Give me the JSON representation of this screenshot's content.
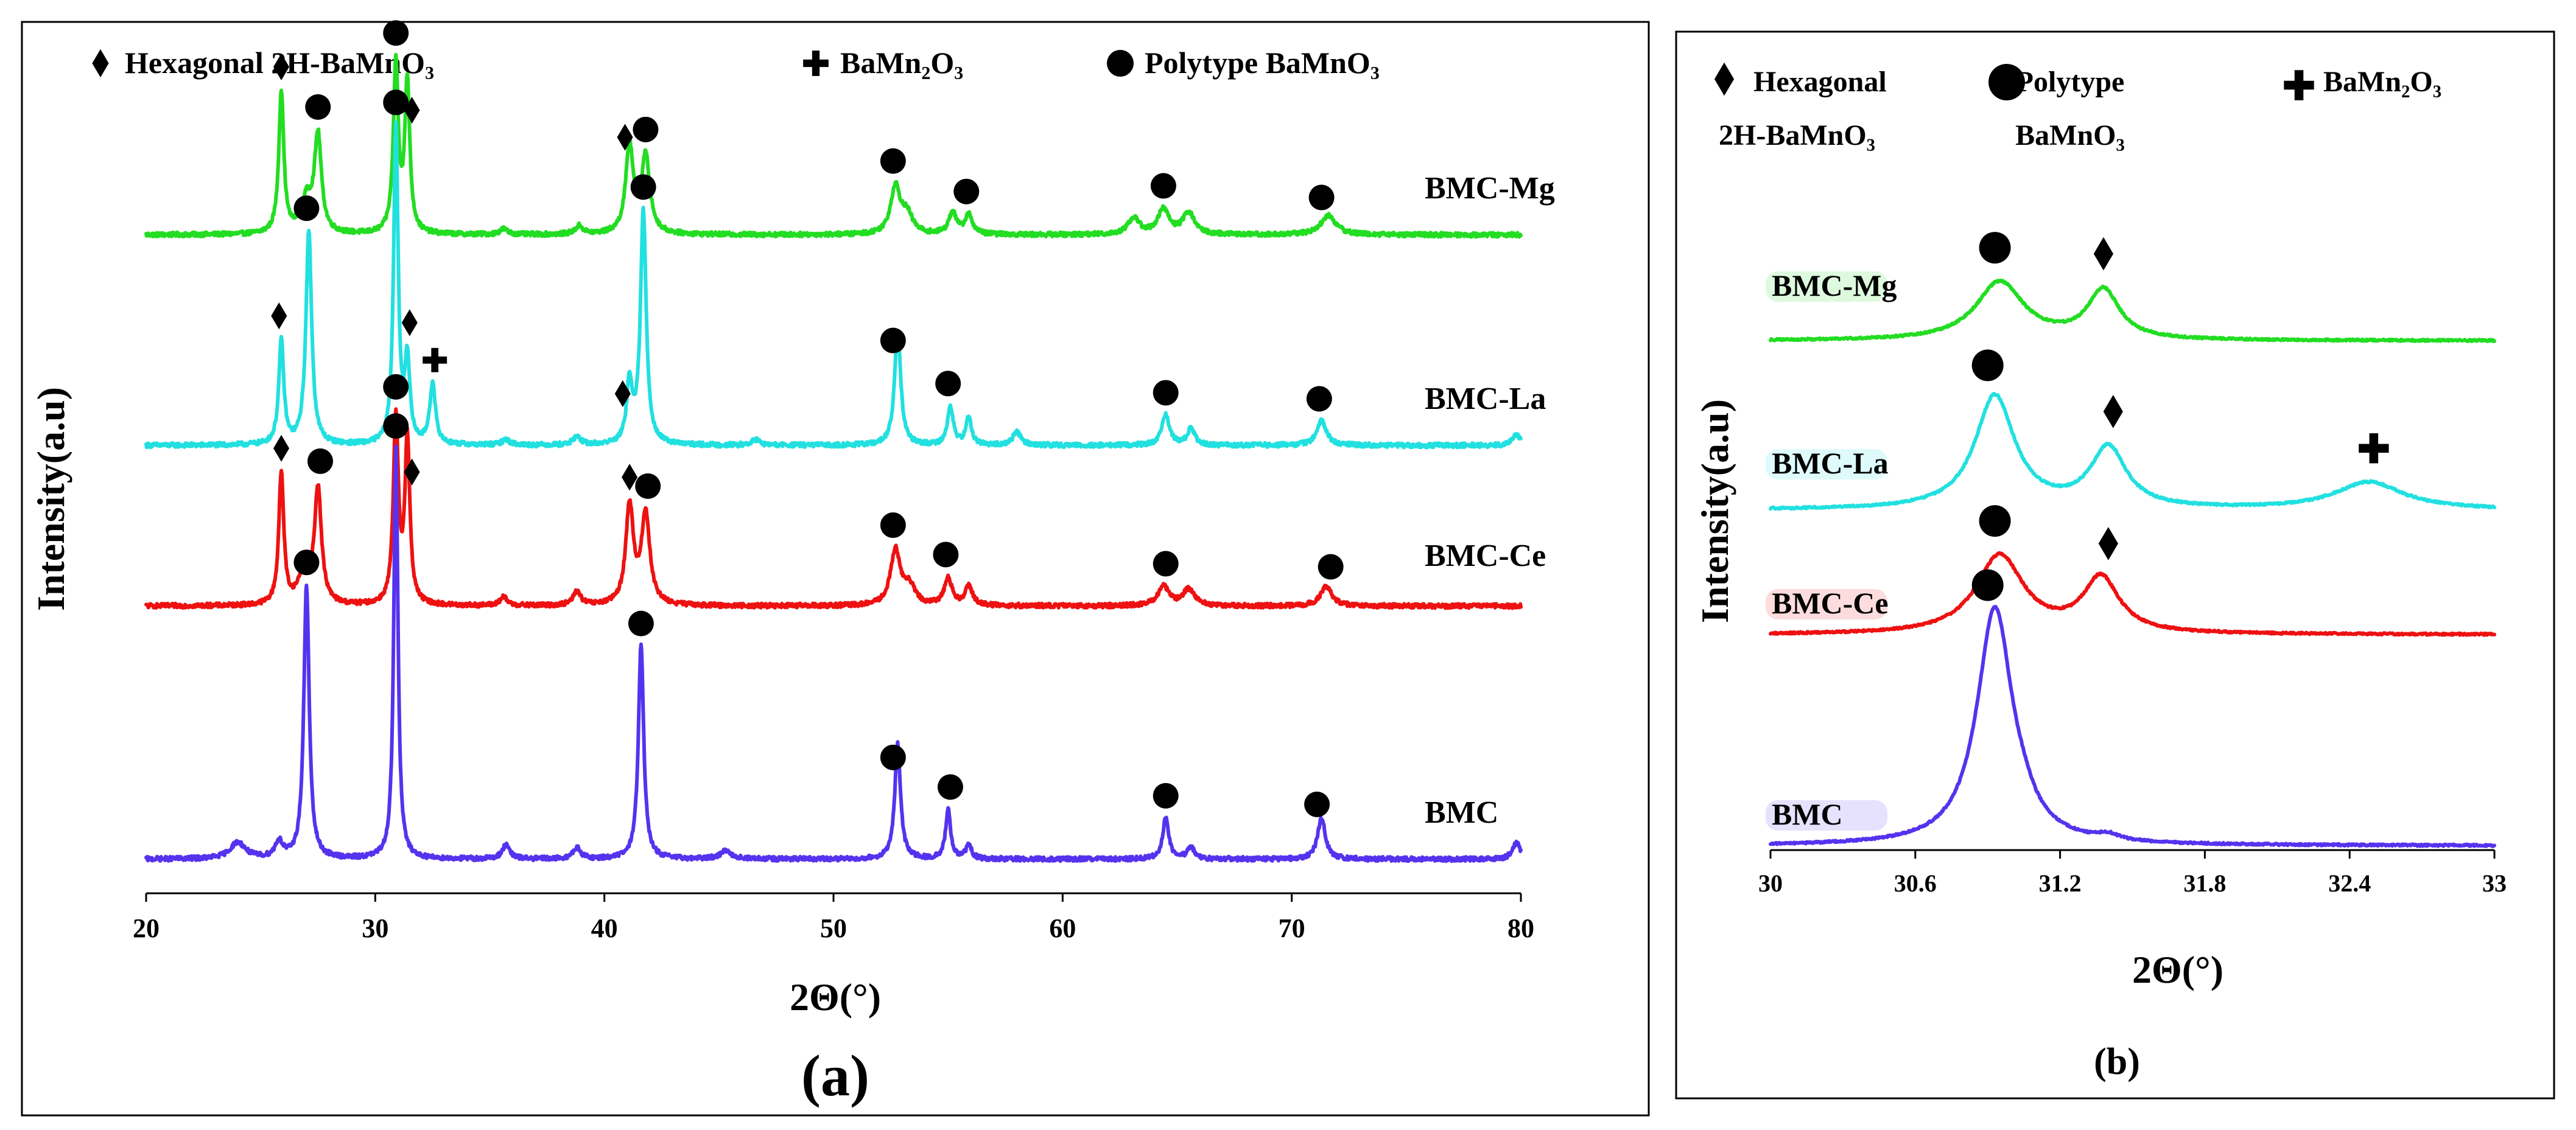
{
  "chart_data": [
    {
      "panel": "(a)",
      "type": "line",
      "xlabel": "2Θ(°)",
      "ylabel": "Intensity(a.u)",
      "xlim": [
        20,
        80
      ],
      "xticks": [
        20,
        30,
        40,
        50,
        60,
        70,
        80
      ],
      "legend": [
        {
          "symbol": "diamond",
          "label": "Hexagonal 2H-BaMnO₃"
        },
        {
          "symbol": "plus",
          "label": "BaMn₂O₃"
        },
        {
          "symbol": "circle",
          "label": "Polytype BaMnO₃"
        }
      ],
      "series": [
        {
          "name": "BMC-Mg",
          "color": "#22dd22",
          "baseline": 0.28,
          "noise": 0.008,
          "peaks": [
            [
              25.9,
              0.52,
              0.13
            ],
            [
              27.5,
              0.35,
              0.18
            ],
            [
              27.0,
              0.12,
              0.3
            ],
            [
              30.9,
              0.62,
              0.13
            ],
            [
              31.4,
              0.55,
              0.13
            ],
            [
              41.1,
              0.32,
              0.2
            ],
            [
              41.8,
              0.28,
              0.22
            ],
            [
              52.7,
              0.17,
              0.25
            ],
            [
              53.2,
              0.07,
              0.3
            ],
            [
              55.2,
              0.08,
              0.2
            ],
            [
              55.9,
              0.07,
              0.2
            ],
            [
              63.1,
              0.06,
              0.3
            ],
            [
              64.4,
              0.09,
              0.3
            ],
            [
              65.5,
              0.08,
              0.3
            ],
            [
              71.6,
              0.07,
              0.4
            ],
            [
              38.9,
              0.03,
              0.2
            ],
            [
              35.6,
              0.02,
              0.2
            ]
          ],
          "markers": [
            [
              25.9,
              "diamond"
            ],
            [
              27.5,
              "circle"
            ],
            [
              30.9,
              "circle"
            ],
            [
              31.6,
              "diamond"
            ],
            [
              40.9,
              "diamond"
            ],
            [
              41.8,
              "circle"
            ],
            [
              52.6,
              "circle"
            ],
            [
              55.8,
              "circle"
            ],
            [
              64.4,
              "circle"
            ],
            [
              71.3,
              "circle"
            ]
          ]
        },
        {
          "name": "BMC-La",
          "color": "#22e0e0",
          "baseline": 0.26,
          "noise": 0.008,
          "peaks": [
            [
              25.9,
              0.38,
              0.13
            ],
            [
              27.1,
              0.78,
              0.15
            ],
            [
              30.9,
              1.15,
              0.12
            ],
            [
              31.4,
              0.3,
              0.13
            ],
            [
              32.5,
              0.22,
              0.15
            ],
            [
              41.1,
              0.22,
              0.15
            ],
            [
              41.7,
              0.85,
              0.15
            ],
            [
              52.8,
              0.42,
              0.16
            ],
            [
              55.1,
              0.14,
              0.15
            ],
            [
              55.9,
              0.1,
              0.15
            ],
            [
              58.0,
              0.05,
              0.2
            ],
            [
              64.5,
              0.11,
              0.2
            ],
            [
              65.6,
              0.06,
              0.2
            ],
            [
              71.3,
              0.09,
              0.25
            ],
            [
              79.8,
              0.04,
              0.2
            ],
            [
              38.8,
              0.03,
              0.2
            ],
            [
              46.6,
              0.02,
              0.2
            ],
            [
              35.7,
              0.02,
              0.2
            ]
          ],
          "markers": [
            [
              27.0,
              "circle"
            ],
            [
              30.9,
              "circle"
            ],
            [
              25.8,
              "diamond"
            ],
            [
              31.5,
              "diamond"
            ],
            [
              32.6,
              "plus"
            ],
            [
              40.8,
              "diamond"
            ],
            [
              41.7,
              "circle"
            ],
            [
              52.6,
              "circle"
            ],
            [
              55.0,
              "circle"
            ],
            [
              64.5,
              "circle"
            ],
            [
              71.2,
              "circle"
            ]
          ]
        },
        {
          "name": "BMC-Ce",
          "color": "#ee1111",
          "baseline": 0.28,
          "noise": 0.008,
          "peaks": [
            [
              25.9,
              0.48,
              0.13
            ],
            [
              27.5,
              0.42,
              0.18
            ],
            [
              26.9,
              0.12,
              0.3
            ],
            [
              30.9,
              0.68,
              0.13
            ],
            [
              31.4,
              0.6,
              0.13
            ],
            [
              41.1,
              0.36,
              0.2
            ],
            [
              41.8,
              0.33,
              0.22
            ],
            [
              52.7,
              0.2,
              0.25
            ],
            [
              53.3,
              0.07,
              0.3
            ],
            [
              55.0,
              0.1,
              0.2
            ],
            [
              55.9,
              0.07,
              0.2
            ],
            [
              64.4,
              0.07,
              0.3
            ],
            [
              65.5,
              0.06,
              0.3
            ],
            [
              71.5,
              0.07,
              0.3
            ],
            [
              38.8,
              0.05,
              0.2
            ],
            [
              35.6,
              0.03,
              0.2
            ]
          ],
          "markers": [
            [
              25.9,
              "diamond"
            ],
            [
              27.6,
              "circle"
            ],
            [
              30.9,
              "circle"
            ],
            [
              31.6,
              "diamond"
            ],
            [
              41.1,
              "diamond"
            ],
            [
              41.9,
              "circle"
            ],
            [
              52.6,
              "circle"
            ],
            [
              54.9,
              "circle"
            ],
            [
              64.5,
              "circle"
            ],
            [
              71.7,
              "circle"
            ]
          ]
        },
        {
          "name": "BMC",
          "color": "#5533ee",
          "baseline": 0.32,
          "noise": 0.008,
          "peaks": [
            [
              27.0,
              1.0,
              0.14
            ],
            [
              30.9,
              1.5,
              0.11
            ],
            [
              41.6,
              0.78,
              0.14
            ],
            [
              52.8,
              0.42,
              0.15
            ],
            [
              55.0,
              0.18,
              0.13
            ],
            [
              55.9,
              0.05,
              0.15
            ],
            [
              64.5,
              0.15,
              0.16
            ],
            [
              65.6,
              0.04,
              0.2
            ],
            [
              71.3,
              0.15,
              0.2
            ],
            [
              79.8,
              0.06,
              0.2
            ],
            [
              24.0,
              0.06,
              0.4
            ],
            [
              25.8,
              0.06,
              0.2
            ],
            [
              35.7,
              0.05,
              0.2
            ],
            [
              38.8,
              0.04,
              0.2
            ],
            [
              45.3,
              0.03,
              0.3
            ]
          ],
          "markers": [
            [
              27.0,
              "circle"
            ],
            [
              30.9,
              "circle"
            ],
            [
              41.6,
              "circle"
            ],
            [
              52.6,
              "circle"
            ],
            [
              55.1,
              "circle"
            ],
            [
              64.5,
              "circle"
            ],
            [
              71.1,
              "circle"
            ]
          ]
        }
      ]
    },
    {
      "panel": "(b)",
      "type": "line",
      "xlabel": "2Θ(°)",
      "ylabel": "Intensity(a.u)",
      "xlim": [
        30,
        33
      ],
      "xticks": [
        30,
        30.6,
        31.2,
        31.8,
        32.4,
        33
      ],
      "legend": [
        {
          "symbol": "diamond",
          "label_lines": [
            "Hexagonal",
            "2H-BaMnO₃"
          ]
        },
        {
          "symbol": "circle",
          "label_lines": [
            "Polytype",
            "BaMnO₃"
          ]
        },
        {
          "symbol": "plus",
          "label_lines": [
            "BaMn₂O₃"
          ]
        }
      ],
      "series": [
        {
          "name": "BMC-Mg",
          "color": "#22dd22",
          "baseline": 0.3,
          "noise": 0.005,
          "peaks": [
            [
              30.95,
              0.32,
              0.12
            ],
            [
              31.38,
              0.27,
              0.08
            ]
          ],
          "markers": [
            [
              30.93,
              "circle"
            ],
            [
              31.38,
              "diamond"
            ]
          ]
        },
        {
          "name": "BMC-La",
          "color": "#22e0e0",
          "baseline": 0.27,
          "noise": 0.005,
          "peaks": [
            [
              30.93,
              0.62,
              0.1
            ],
            [
              31.4,
              0.33,
              0.09
            ],
            [
              32.48,
              0.15,
              0.17
            ]
          ],
          "markers": [
            [
              30.9,
              "circle"
            ],
            [
              31.42,
              "diamond"
            ],
            [
              32.5,
              "plus"
            ]
          ]
        },
        {
          "name": "BMC-Ce",
          "color": "#ee1111",
          "baseline": 0.28,
          "noise": 0.005,
          "peaks": [
            [
              30.95,
              0.43,
              0.12
            ],
            [
              31.37,
              0.3,
              0.09
            ]
          ],
          "markers": [
            [
              30.93,
              "circle"
            ],
            [
              31.4,
              "diamond"
            ]
          ]
        },
        {
          "name": "BMC",
          "color": "#5533ee",
          "baseline": 0.3,
          "noise": 0.005,
          "peaks": [
            [
              30.93,
              1.3,
              0.09
            ],
            [
              31.05,
              0.05,
              0.05
            ],
            [
              31.4,
              0.03,
              0.05
            ]
          ],
          "markers": [
            [
              30.9,
              "circle"
            ]
          ]
        }
      ]
    }
  ]
}
